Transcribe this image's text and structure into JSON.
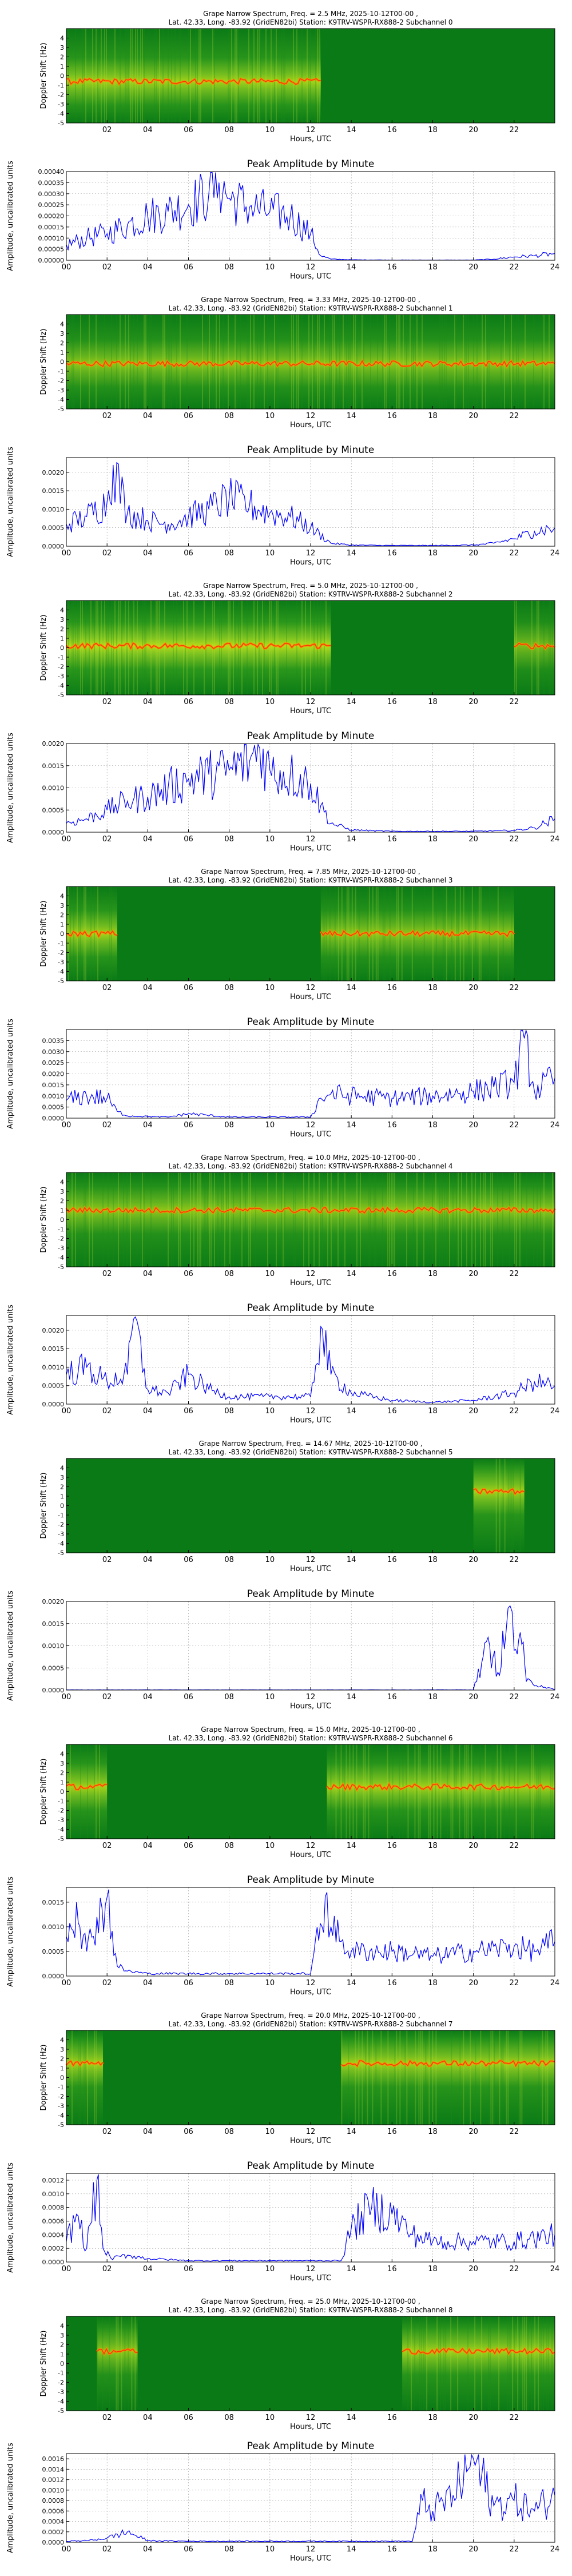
{
  "colors": {
    "line": "#0000ff",
    "grid": "#999999",
    "spec_lo": "#0a7a16",
    "spec_mid": "#c8e619",
    "spec_hi": "#ff8c00",
    "spec_peak": "#ff2200"
  },
  "chart_data": [
    {
      "type": "heatmap",
      "title1": "Grape Narrow Spectrum, Freq. = 2.5 MHz, 2025-10-12T00-00 ,",
      "title2": "Lat.  42.33, Long. -83.92 (GridEN82bi) Station: K9TRV-WSPR-RX888-2 Subchannel 0",
      "xlabel": "Hours, UTC",
      "ylabel": "Doppler Shift (Hz)",
      "xlim": [
        0,
        24
      ],
      "ylim": [
        -5,
        5
      ],
      "xticks": [
        "02",
        "04",
        "06",
        "08",
        "10",
        "12",
        "14",
        "16",
        "18",
        "20",
        "22"
      ],
      "yticks": [
        "4",
        "3",
        "2",
        "1",
        "0",
        "-1",
        "-2",
        "-3",
        "-4",
        "-5"
      ],
      "activity": [
        [
          0,
          12.5,
          0.8
        ]
      ],
      "trace": -0.6
    },
    {
      "type": "line",
      "title": "Peak Amplitude by Minute",
      "xlabel": "Hours, UTC",
      "ylabel": "Amplitude, uncalibrated units",
      "xlim": [
        0,
        24
      ],
      "ylim": [
        0,
        0.0004
      ],
      "yticks": [
        "0.00000",
        "0.00005",
        "0.00010",
        "0.00015",
        "0.00020",
        "0.00025",
        "0.00030",
        "0.00035",
        "0.00040"
      ],
      "xticks": [
        "00",
        "02",
        "04",
        "06",
        "08",
        "10",
        "12",
        "14",
        "16",
        "18",
        "20",
        "22",
        "24"
      ],
      "x": [
        0,
        1,
        2,
        3,
        4,
        5,
        6,
        7,
        7.5,
        8,
        9,
        10,
        11,
        12,
        12.5,
        13,
        14,
        16,
        18,
        20,
        21,
        22,
        23,
        24
      ],
      "y": [
        7e-05,
        0.0001,
        0.00012,
        0.00016,
        0.0002,
        0.00022,
        0.00025,
        0.0003,
        0.00035,
        0.00028,
        0.00024,
        0.00022,
        0.0002,
        0.00012,
        2e-05,
        5e-06,
        2e-06,
        1e-06,
        1e-06,
        1e-06,
        5e-06,
        1.5e-05,
        2e-05,
        3e-05
      ]
    },
    {
      "type": "heatmap",
      "title1": "Grape Narrow Spectrum, Freq. = 3.33 MHz, 2025-10-12T00-00 ,",
      "title2": "Lat.  42.33, Long. -83.92 (GridEN82bi) Station: K9TRV-WSPR-RX888-2 Subchannel 1",
      "xlabel": "Hours, UTC",
      "ylabel": "Doppler Shift (Hz)",
      "xlim": [
        0,
        24
      ],
      "ylim": [
        -5,
        5
      ],
      "xticks": [
        "02",
        "04",
        "06",
        "08",
        "10",
        "12",
        "14",
        "16",
        "18",
        "20",
        "22"
      ],
      "yticks": [
        "4",
        "3",
        "2",
        "1",
        "0",
        "-1",
        "-2",
        "-3",
        "-4",
        "-5"
      ],
      "activity": [
        [
          0,
          24,
          0.7
        ]
      ],
      "trace": -0.2
    },
    {
      "type": "line",
      "title": "Peak Amplitude by Minute",
      "xlabel": "Hours, UTC",
      "ylabel": "Amplitude, uncalibrated units",
      "xlim": [
        0,
        24
      ],
      "ylim": [
        0,
        0.0024
      ],
      "yticks": [
        "0.0000",
        "0.0005",
        "0.0010",
        "0.0015",
        "0.0020"
      ],
      "xticks": [
        "00",
        "02",
        "04",
        "06",
        "08",
        "10",
        "12",
        "14",
        "16",
        "18",
        "20",
        "22",
        "24"
      ],
      "x": [
        0,
        1,
        2,
        2.3,
        3,
        4,
        5,
        6,
        7,
        8,
        9,
        10,
        11,
        12,
        13,
        14,
        16,
        18,
        20,
        21,
        22,
        23,
        24
      ],
      "y": [
        0.0006,
        0.0008,
        0.0012,
        0.0022,
        0.0009,
        0.0007,
        0.0006,
        0.0008,
        0.001,
        0.0013,
        0.0011,
        0.0009,
        0.0008,
        0.0005,
        8e-05,
        3e-05,
        2e-05,
        2e-05,
        3e-05,
        8e-05,
        0.0002,
        0.0004,
        0.0005
      ]
    },
    {
      "type": "heatmap",
      "title1": "Grape Narrow Spectrum, Freq. = 5.0 MHz, 2025-10-12T00-00 ,",
      "title2": "Lat.  42.33, Long. -83.92 (GridEN82bi) Station: K9TRV-WSPR-RX888-2 Subchannel 2",
      "xlabel": "Hours, UTC",
      "ylabel": "Doppler Shift (Hz)",
      "xlim": [
        0,
        24
      ],
      "ylim": [
        -5,
        5
      ],
      "xticks": [
        "02",
        "04",
        "06",
        "08",
        "10",
        "12",
        "14",
        "16",
        "18",
        "20",
        "22"
      ],
      "yticks": [
        "4",
        "3",
        "2",
        "1",
        "0",
        "-1",
        "-2",
        "-3",
        "-4",
        "-5"
      ],
      "activity": [
        [
          0,
          13,
          0.9
        ],
        [
          22,
          24,
          0.6
        ]
      ],
      "trace": 0.2
    },
    {
      "type": "line",
      "title": "Peak Amplitude by Minute",
      "xlabel": "Hours, UTC",
      "ylabel": "Amplitude, uncalibrated units",
      "xlim": [
        0,
        24
      ],
      "ylim": [
        0,
        0.002
      ],
      "yticks": [
        "0.0000",
        "0.0005",
        "0.0010",
        "0.0015",
        "0.0020"
      ],
      "xticks": [
        "00",
        "02",
        "04",
        "06",
        "08",
        "10",
        "12",
        "14",
        "16",
        "18",
        "20",
        "22",
        "24"
      ],
      "x": [
        0,
        1,
        2,
        3,
        4,
        5,
        6,
        7,
        8,
        9,
        9.5,
        10,
        11,
        12,
        12.5,
        13,
        14,
        16,
        18,
        20,
        22,
        23,
        24
      ],
      "y": [
        0.0002,
        0.0003,
        0.0005,
        0.0007,
        0.0008,
        0.001,
        0.0012,
        0.0013,
        0.0014,
        0.0016,
        0.0019,
        0.0014,
        0.0013,
        0.0011,
        0.0006,
        0.0002,
        5e-05,
        2e-05,
        2e-05,
        2e-05,
        4e-05,
        0.0001,
        0.0003
      ]
    },
    {
      "type": "heatmap",
      "title1": "Grape Narrow Spectrum, Freq. = 7.85 MHz, 2025-10-12T00-00 ,",
      "title2": "Lat.  42.33, Long. -83.92 (GridEN82bi) Station: K9TRV-WSPR-RX888-2 Subchannel 3",
      "xlabel": "Hours, UTC",
      "ylabel": "Doppler Shift (Hz)",
      "xlim": [
        0,
        24
      ],
      "ylim": [
        -5,
        5
      ],
      "xticks": [
        "02",
        "04",
        "06",
        "08",
        "10",
        "12",
        "14",
        "16",
        "18",
        "20",
        "22"
      ],
      "yticks": [
        "4",
        "3",
        "2",
        "1",
        "0",
        "-1",
        "-2",
        "-3",
        "-4",
        "-5"
      ],
      "activity": [
        [
          0,
          2.5,
          0.8
        ],
        [
          12.5,
          22,
          0.7
        ]
      ],
      "trace": 0.0
    },
    {
      "type": "line",
      "title": "Peak Amplitude by Minute",
      "xlabel": "Hours, UTC",
      "ylabel": "Amplitude, uncalibrated units",
      "xlim": [
        0,
        24
      ],
      "ylim": [
        0,
        0.004
      ],
      "yticks": [
        "0.0000",
        "0.0005",
        "0.0010",
        "0.0015",
        "0.0020",
        "0.0025",
        "0.0030",
        "0.0035"
      ],
      "xticks": [
        "00",
        "02",
        "04",
        "06",
        "08",
        "10",
        "12",
        "14",
        "16",
        "18",
        "20",
        "22",
        "24"
      ],
      "x": [
        0,
        1,
        2,
        2.5,
        3,
        5,
        6,
        8,
        10,
        12,
        12.5,
        13,
        14,
        16,
        18,
        20,
        21,
        22,
        22.5,
        23,
        24
      ],
      "y": [
        0.0008,
        0.001,
        0.0009,
        0.0003,
        0.0001,
        5e-05,
        0.0002,
        5e-05,
        5e-05,
        5e-05,
        0.0009,
        0.0011,
        0.001,
        0.0009,
        0.001,
        0.0012,
        0.0014,
        0.0016,
        0.0036,
        0.0012,
        0.0018
      ]
    },
    {
      "type": "heatmap",
      "title1": "Grape Narrow Spectrum, Freq. = 10.0 MHz, 2025-10-12T00-00 ,",
      "title2": "Lat.  42.33, Long. -83.92 (GridEN82bi) Station: K9TRV-WSPR-RX888-2 Subchannel 4",
      "xlabel": "Hours, UTC",
      "ylabel": "Doppler Shift (Hz)",
      "xlim": [
        0,
        24
      ],
      "ylim": [
        -5,
        5
      ],
      "xticks": [
        "02",
        "04",
        "06",
        "08",
        "10",
        "12",
        "14",
        "16",
        "18",
        "20",
        "22"
      ],
      "yticks": [
        "4",
        "3",
        "2",
        "1",
        "0",
        "-1",
        "-2",
        "-3",
        "-4",
        "-5"
      ],
      "activity": [
        [
          0,
          24,
          0.7
        ]
      ],
      "trace": 1.0
    },
    {
      "type": "line",
      "title": "Peak Amplitude by Minute",
      "xlabel": "Hours, UTC",
      "ylabel": "Amplitude, uncalibrated units",
      "xlim": [
        0,
        24
      ],
      "ylim": [
        0,
        0.0024
      ],
      "yticks": [
        "0.0000",
        "0.0005",
        "0.0010",
        "0.0015",
        "0.0020"
      ],
      "xticks": [
        "00",
        "02",
        "04",
        "06",
        "08",
        "10",
        "12",
        "14",
        "16",
        "18",
        "20",
        "22",
        "24"
      ],
      "x": [
        0,
        1,
        2,
        3,
        3.3,
        4,
        5,
        6,
        7,
        8,
        10,
        12,
        12.5,
        13,
        14,
        16,
        18,
        20,
        22,
        23,
        24
      ],
      "y": [
        0.0008,
        0.001,
        0.0006,
        0.0008,
        0.0023,
        0.0004,
        0.0003,
        0.0008,
        0.0004,
        0.0002,
        0.0002,
        0.0002,
        0.0021,
        0.0008,
        0.0003,
        0.0001,
        5e-05,
        0.0001,
        0.0003,
        0.0006,
        0.0005
      ]
    },
    {
      "type": "heatmap",
      "title1": "Grape Narrow Spectrum, Freq. = 14.67 MHz, 2025-10-12T00-00 ,",
      "title2": "Lat.  42.33, Long. -83.92 (GridEN82bi) Station: K9TRV-WSPR-RX888-2 Subchannel 5",
      "xlabel": "Hours, UTC",
      "ylabel": "Doppler Shift (Hz)",
      "xlim": [
        0,
        24
      ],
      "ylim": [
        -5,
        5
      ],
      "xticks": [
        "02",
        "04",
        "06",
        "08",
        "10",
        "12",
        "14",
        "16",
        "18",
        "20",
        "22"
      ],
      "yticks": [
        "4",
        "3",
        "2",
        "1",
        "0",
        "-1",
        "-2",
        "-3",
        "-4",
        "-5"
      ],
      "activity": [
        [
          20,
          22.5,
          0.8
        ]
      ],
      "trace": 1.5
    },
    {
      "type": "line",
      "title": "Peak Amplitude by Minute",
      "xlabel": "Hours, UTC",
      "ylabel": "Amplitude, uncalibrated units",
      "xlim": [
        0,
        24
      ],
      "ylim": [
        0,
        0.002
      ],
      "yticks": [
        "0.0000",
        "0.0005",
        "0.0010",
        "0.0015",
        "0.0020"
      ],
      "xticks": [
        "00",
        "02",
        "04",
        "06",
        "08",
        "10",
        "12",
        "14",
        "16",
        "18",
        "20",
        "22",
        "24"
      ],
      "x": [
        0,
        4,
        8,
        12,
        16,
        20,
        20.4,
        20.8,
        21.2,
        21.6,
        21.8,
        22,
        22.3,
        22.6,
        24
      ],
      "y": [
        5e-06,
        5e-06,
        5e-06,
        5e-06,
        5e-06,
        5e-06,
        0.0006,
        0.001,
        0.0004,
        0.0013,
        0.0019,
        0.0009,
        0.0013,
        0.0002,
        5e-06
      ]
    },
    {
      "type": "heatmap",
      "title1": "Grape Narrow Spectrum, Freq. = 15.0 MHz, 2025-10-12T00-00 ,",
      "title2": "Lat.  42.33, Long. -83.92 (GridEN82bi) Station: K9TRV-WSPR-RX888-2 Subchannel 6",
      "xlabel": "Hours, UTC",
      "ylabel": "Doppler Shift (Hz)",
      "xlim": [
        0,
        24
      ],
      "ylim": [
        -5,
        5
      ],
      "xticks": [
        "02",
        "04",
        "06",
        "08",
        "10",
        "12",
        "14",
        "16",
        "18",
        "20",
        "22"
      ],
      "yticks": [
        "4",
        "3",
        "2",
        "1",
        "0",
        "-1",
        "-2",
        "-3",
        "-4",
        "-5"
      ],
      "activity": [
        [
          0,
          2,
          0.8
        ],
        [
          12.8,
          24,
          0.8
        ]
      ],
      "trace": 0.5
    },
    {
      "type": "line",
      "title": "Peak Amplitude by Minute",
      "xlabel": "Hours, UTC",
      "ylabel": "Amplitude, uncalibrated units",
      "xlim": [
        0,
        24
      ],
      "ylim": [
        0,
        0.0018
      ],
      "yticks": [
        "0.0000",
        "0.0005",
        "0.0010",
        "0.0015"
      ],
      "xticks": [
        "00",
        "02",
        "04",
        "06",
        "08",
        "10",
        "12",
        "14",
        "16",
        "18",
        "20",
        "22",
        "24"
      ],
      "x": [
        0,
        0.5,
        1,
        1.5,
        2,
        2.5,
        3,
        4,
        6,
        8,
        10,
        12,
        12.8,
        13,
        13.5,
        14,
        16,
        18,
        20,
        22,
        23,
        24
      ],
      "y": [
        0.0008,
        0.0015,
        0.0005,
        0.0012,
        0.0016,
        0.0002,
        0.0001,
        5e-05,
        5e-05,
        5e-05,
        5e-05,
        5e-05,
        0.0017,
        0.001,
        0.0007,
        0.0005,
        0.0005,
        0.0004,
        0.0005,
        0.0006,
        0.0005,
        0.0007
      ]
    },
    {
      "type": "heatmap",
      "title1": "Grape Narrow Spectrum, Freq. = 20.0 MHz, 2025-10-12T00-00 ,",
      "title2": "Lat.  42.33, Long. -83.92 (GridEN82bi) Station: K9TRV-WSPR-RX888-2 Subchannel 7",
      "xlabel": "Hours, UTC",
      "ylabel": "Doppler Shift (Hz)",
      "xlim": [
        0,
        24
      ],
      "ylim": [
        -5,
        5
      ],
      "xticks": [
        "02",
        "04",
        "06",
        "08",
        "10",
        "12",
        "14",
        "16",
        "18",
        "20",
        "22"
      ],
      "yticks": [
        "4",
        "3",
        "2",
        "1",
        "0",
        "-1",
        "-2",
        "-3",
        "-4",
        "-5"
      ],
      "activity": [
        [
          0,
          1.8,
          0.8
        ],
        [
          13.5,
          24,
          0.8
        ]
      ],
      "trace": 1.5
    },
    {
      "type": "line",
      "title": "Peak Amplitude by Minute",
      "xlabel": "Hours, UTC",
      "ylabel": "Amplitude, uncalibrated units",
      "xlim": [
        0,
        24
      ],
      "ylim": [
        0,
        0.0013
      ],
      "yticks": [
        "0.0000",
        "0.0002",
        "0.0004",
        "0.0006",
        "0.0008",
        "0.0010",
        "0.0012"
      ],
      "xticks": [
        "00",
        "02",
        "04",
        "06",
        "08",
        "10",
        "12",
        "14",
        "16",
        "18",
        "20",
        "22",
        "24"
      ],
      "x": [
        0,
        0.5,
        1,
        1.5,
        1.8,
        2.2,
        3,
        4,
        6,
        8,
        10,
        12,
        13.5,
        14,
        15,
        16,
        17,
        18,
        20,
        22,
        24
      ],
      "y": [
        0.0003,
        0.0007,
        0.0002,
        0.0012,
        0.0002,
        5e-05,
        0.0001,
        5e-05,
        2e-05,
        2e-05,
        2e-05,
        2e-05,
        2e-05,
        0.0005,
        0.0008,
        0.0007,
        0.0004,
        0.0003,
        0.0003,
        0.0003,
        0.0004
      ]
    },
    {
      "type": "heatmap",
      "title1": "Grape Narrow Spectrum, Freq. = 25.0 MHz, 2025-10-12T00-00 ,",
      "title2": "Lat.  42.33, Long. -83.92 (GridEN82bi) Station: K9TRV-WSPR-RX888-2 Subchannel 8",
      "xlabel": "Hours, UTC",
      "ylabel": "Doppler Shift (Hz)",
      "xlim": [
        0,
        24
      ],
      "ylim": [
        -5,
        5
      ],
      "xticks": [
        "02",
        "04",
        "06",
        "08",
        "10",
        "12",
        "14",
        "16",
        "18",
        "20",
        "22"
      ],
      "yticks": [
        "4",
        "3",
        "2",
        "1",
        "0",
        "-1",
        "-2",
        "-3",
        "-4",
        "-5"
      ],
      "activity": [
        [
          1.5,
          3.5,
          0.7
        ],
        [
          16.5,
          24,
          0.8
        ]
      ],
      "trace": 1.3
    },
    {
      "type": "line",
      "title": "Peak Amplitude by Minute",
      "xlabel": "Hours, UTC",
      "ylabel": "Amplitude, uncalibrated units",
      "xlim": [
        0,
        24
      ],
      "ylim": [
        0,
        0.0017
      ],
      "yticks": [
        "0.0000",
        "0.0002",
        "0.0004",
        "0.0006",
        "0.0008",
        "0.0010",
        "0.0012",
        "0.0014",
        "0.0016"
      ],
      "xticks": [
        "00",
        "02",
        "04",
        "06",
        "08",
        "10",
        "12",
        "14",
        "16",
        "18",
        "20",
        "22",
        "24"
      ],
      "x": [
        0,
        1,
        2,
        3,
        4,
        6,
        8,
        10,
        12,
        14,
        16,
        17,
        17.5,
        18,
        19,
        20,
        21,
        22,
        23,
        24
      ],
      "y": [
        2e-05,
        3e-05,
        8e-05,
        0.0002,
        3e-05,
        2e-05,
        2e-05,
        2e-05,
        2e-05,
        2e-05,
        2e-05,
        2e-05,
        0.0008,
        0.0006,
        0.0009,
        0.0016,
        0.0007,
        0.0008,
        0.0006,
        0.0009
      ]
    }
  ]
}
